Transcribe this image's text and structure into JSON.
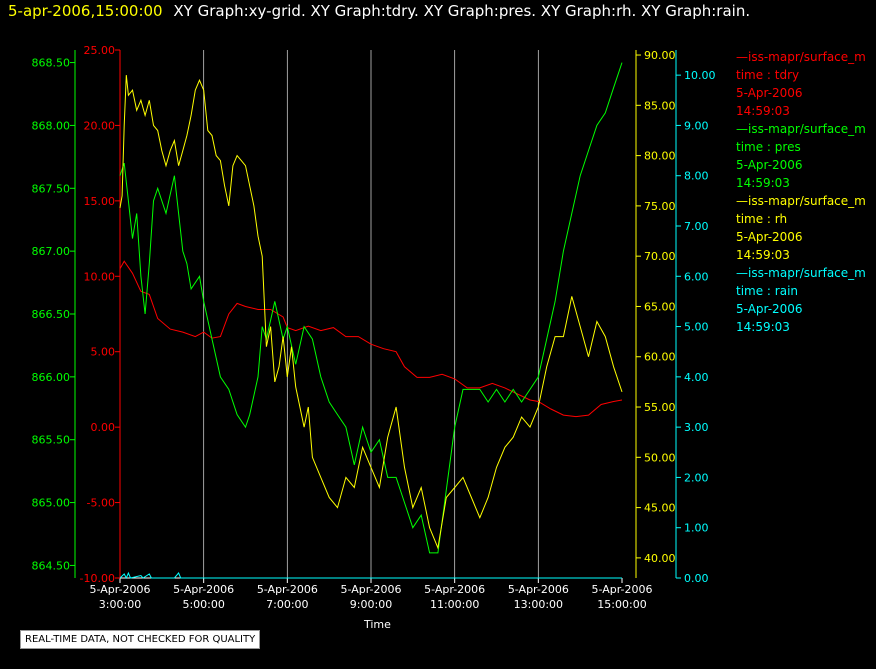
{
  "header": {
    "timestamp": "5-apr-2006,15:00:00",
    "graph_titles": "XY Graph:xy-grid.  XY Graph:tdry.  XY Graph:pres.  XY Graph:rh.  XY Graph:rain."
  },
  "footer_note": "REAL-TIME DATA, NOT CHECKED FOR QUALITY",
  "colors": {
    "tdry": "#ff0000",
    "pres": "#00ff00",
    "rh": "#ffff00",
    "rain": "#00ffff",
    "grid": "#c8c8c8"
  },
  "legend": [
    {
      "header": "—iss-mapr/surface_m",
      "label": "time : tdry",
      "date": "5-Apr-2006",
      "time": "14:59:03",
      "color": "#ff0000"
    },
    {
      "header": "—iss-mapr/surface_m",
      "label": "time : pres",
      "date": "5-Apr-2006",
      "time": "14:59:03",
      "color": "#00ff00"
    },
    {
      "header": "—iss-mapr/surface_m",
      "label": "time : rh",
      "date": "5-Apr-2006",
      "time": "14:59:03",
      "color": "#ffff00"
    },
    {
      "header": "—iss-mapr/surface_m",
      "label": "time : rain",
      "date": "5-Apr-2006",
      "time": "14:59:03",
      "color": "#00ffff"
    }
  ],
  "chart_data": {
    "type": "line",
    "xlabel": "Time",
    "x_range_hours": [
      3,
      15
    ],
    "x_ticks": [
      {
        "date": "5-Apr-2006",
        "time": "3:00:00",
        "hour": 3
      },
      {
        "date": "5-Apr-2006",
        "time": "5:00:00",
        "hour": 5
      },
      {
        "date": "5-Apr-2006",
        "time": "7:00:00",
        "hour": 7
      },
      {
        "date": "5-Apr-2006",
        "time": "9:00:00",
        "hour": 9
      },
      {
        "date": "5-Apr-2006",
        "time": "11:00:00",
        "hour": 11
      },
      {
        "date": "5-Apr-2006",
        "time": "13:00:00",
        "hour": 13
      },
      {
        "date": "5-Apr-2006",
        "time": "15:00:00",
        "hour": 15
      }
    ],
    "grid": "vertical lines at time ticks",
    "axes": {
      "tdry": {
        "range": [
          -10,
          25
        ],
        "ticks": [
          "25.00",
          "20.00",
          "15.00",
          "10.00",
          "5.00",
          "0.00",
          "-5.00",
          "-10.00"
        ],
        "color": "#ff0000"
      },
      "pres": {
        "range": [
          864.4,
          868.6
        ],
        "ticks": [
          "868.50",
          "868.00",
          "867.50",
          "867.00",
          "866.50",
          "866.00",
          "865.50",
          "865.00",
          "864.50"
        ],
        "color": "#00ff00"
      },
      "rh": {
        "range": [
          38,
          90.5
        ],
        "ticks": [
          "90.00",
          "85.00",
          "80.00",
          "75.00",
          "70.00",
          "65.00",
          "60.00",
          "55.00",
          "50.00",
          "45.00",
          "40.00"
        ],
        "color": "#ffff00"
      },
      "rain": {
        "range": [
          0,
          10.5
        ],
        "ticks": [
          "10.00",
          "9.00",
          "8.00",
          "7.00",
          "6.00",
          "5.00",
          "4.00",
          "3.00",
          "2.00",
          "1.00",
          "0.00"
        ],
        "color": "#00ffff"
      }
    },
    "series": [
      {
        "name": "tdry",
        "axis": "tdry",
        "points": [
          [
            3.0,
            10.5
          ],
          [
            3.1,
            11.0
          ],
          [
            3.3,
            10.2
          ],
          [
            3.5,
            9.0
          ],
          [
            3.7,
            8.8
          ],
          [
            3.9,
            7.2
          ],
          [
            4.2,
            6.5
          ],
          [
            4.5,
            6.3
          ],
          [
            4.8,
            6.0
          ],
          [
            5.0,
            6.3
          ],
          [
            5.2,
            5.9
          ],
          [
            5.4,
            6.0
          ],
          [
            5.6,
            7.5
          ],
          [
            5.8,
            8.2
          ],
          [
            6.0,
            8.0
          ],
          [
            6.3,
            7.8
          ],
          [
            6.6,
            7.8
          ],
          [
            6.9,
            7.3
          ],
          [
            7.0,
            6.6
          ],
          [
            7.2,
            6.4
          ],
          [
            7.5,
            6.7
          ],
          [
            7.8,
            6.4
          ],
          [
            8.1,
            6.6
          ],
          [
            8.4,
            6.0
          ],
          [
            8.7,
            6.0
          ],
          [
            9.0,
            5.5
          ],
          [
            9.3,
            5.2
          ],
          [
            9.6,
            5.0
          ],
          [
            9.8,
            4.0
          ],
          [
            10.1,
            3.3
          ],
          [
            10.4,
            3.3
          ],
          [
            10.7,
            3.5
          ],
          [
            11.0,
            3.2
          ],
          [
            11.3,
            2.6
          ],
          [
            11.6,
            2.6
          ],
          [
            11.9,
            2.9
          ],
          [
            12.2,
            2.6
          ],
          [
            12.5,
            2.2
          ],
          [
            12.8,
            1.8
          ],
          [
            13.0,
            1.7
          ],
          [
            13.3,
            1.2
          ],
          [
            13.6,
            0.8
          ],
          [
            13.9,
            0.7
          ],
          [
            14.2,
            0.8
          ],
          [
            14.5,
            1.5
          ],
          [
            14.8,
            1.7
          ],
          [
            15.0,
            1.8
          ]
        ]
      },
      {
        "name": "pres",
        "axis": "pres",
        "points": [
          [
            3.0,
            867.6
          ],
          [
            3.1,
            867.7
          ],
          [
            3.2,
            867.4
          ],
          [
            3.3,
            867.1
          ],
          [
            3.4,
            867.3
          ],
          [
            3.5,
            866.8
          ],
          [
            3.6,
            866.5
          ],
          [
            3.7,
            866.9
          ],
          [
            3.8,
            867.4
          ],
          [
            3.9,
            867.5
          ],
          [
            4.1,
            867.3
          ],
          [
            4.3,
            867.6
          ],
          [
            4.5,
            867.0
          ],
          [
            4.6,
            866.9
          ],
          [
            4.7,
            866.7
          ],
          [
            4.9,
            866.8
          ],
          [
            5.0,
            866.6
          ],
          [
            5.2,
            866.3
          ],
          [
            5.4,
            866.0
          ],
          [
            5.6,
            865.9
          ],
          [
            5.8,
            865.7
          ],
          [
            6.0,
            865.6
          ],
          [
            6.1,
            865.7
          ],
          [
            6.3,
            866.0
          ],
          [
            6.4,
            866.4
          ],
          [
            6.5,
            866.3
          ],
          [
            6.7,
            866.6
          ],
          [
            6.9,
            866.3
          ],
          [
            7.0,
            866.4
          ],
          [
            7.2,
            866.1
          ],
          [
            7.4,
            866.4
          ],
          [
            7.6,
            866.3
          ],
          [
            7.8,
            866.0
          ],
          [
            8.0,
            865.8
          ],
          [
            8.2,
            865.7
          ],
          [
            8.4,
            865.6
          ],
          [
            8.6,
            865.3
          ],
          [
            8.8,
            865.6
          ],
          [
            9.0,
            865.4
          ],
          [
            9.2,
            865.5
          ],
          [
            9.4,
            865.2
          ],
          [
            9.6,
            865.2
          ],
          [
            9.8,
            865.0
          ],
          [
            10.0,
            864.8
          ],
          [
            10.2,
            864.9
          ],
          [
            10.4,
            864.6
          ],
          [
            10.6,
            864.6
          ],
          [
            10.8,
            865.1
          ],
          [
            11.0,
            865.6
          ],
          [
            11.2,
            865.9
          ],
          [
            11.4,
            865.9
          ],
          [
            11.6,
            865.9
          ],
          [
            11.8,
            865.8
          ],
          [
            12.0,
            865.9
          ],
          [
            12.2,
            865.8
          ],
          [
            12.4,
            865.9
          ],
          [
            12.6,
            865.8
          ],
          [
            12.8,
            865.9
          ],
          [
            13.0,
            866.0
          ],
          [
            13.2,
            866.3
          ],
          [
            13.4,
            866.6
          ],
          [
            13.6,
            867.0
          ],
          [
            13.8,
            867.3
          ],
          [
            14.0,
            867.6
          ],
          [
            14.2,
            867.8
          ],
          [
            14.4,
            868.0
          ],
          [
            14.6,
            868.1
          ],
          [
            14.8,
            868.3
          ],
          [
            15.0,
            868.5
          ]
        ]
      },
      {
        "name": "rh",
        "axis": "rh",
        "points": [
          [
            3.0,
            74.8
          ],
          [
            3.05,
            76.0
          ],
          [
            3.1,
            83.0
          ],
          [
            3.15,
            88.0
          ],
          [
            3.2,
            86.0
          ],
          [
            3.3,
            86.5
          ],
          [
            3.4,
            84.5
          ],
          [
            3.5,
            85.5
          ],
          [
            3.6,
            84.0
          ],
          [
            3.7,
            85.5
          ],
          [
            3.8,
            83.0
          ],
          [
            3.9,
            82.5
          ],
          [
            4.0,
            80.5
          ],
          [
            4.1,
            79.0
          ],
          [
            4.2,
            80.5
          ],
          [
            4.3,
            81.5
          ],
          [
            4.4,
            79.0
          ],
          [
            4.5,
            80.5
          ],
          [
            4.6,
            82.0
          ],
          [
            4.7,
            84.0
          ],
          [
            4.8,
            86.5
          ],
          [
            4.9,
            87.5
          ],
          [
            5.0,
            86.5
          ],
          [
            5.1,
            82.5
          ],
          [
            5.2,
            82.0
          ],
          [
            5.3,
            80.0
          ],
          [
            5.4,
            79.5
          ],
          [
            5.5,
            77.0
          ],
          [
            5.6,
            75.0
          ],
          [
            5.7,
            79.0
          ],
          [
            5.8,
            80.0
          ],
          [
            5.9,
            79.5
          ],
          [
            6.0,
            79.0
          ],
          [
            6.1,
            77.0
          ],
          [
            6.2,
            75.0
          ],
          [
            6.3,
            72.0
          ],
          [
            6.4,
            70.0
          ],
          [
            6.5,
            61.0
          ],
          [
            6.6,
            63.0
          ],
          [
            6.7,
            57.5
          ],
          [
            6.8,
            59.0
          ],
          [
            6.9,
            62.0
          ],
          [
            7.0,
            58.0
          ],
          [
            7.1,
            61.0
          ],
          [
            7.2,
            57.0
          ],
          [
            7.3,
            55.0
          ],
          [
            7.4,
            53.0
          ],
          [
            7.5,
            55.0
          ],
          [
            7.6,
            50.0
          ],
          [
            7.8,
            48.0
          ],
          [
            8.0,
            46.0
          ],
          [
            8.2,
            45.0
          ],
          [
            8.4,
            48.0
          ],
          [
            8.6,
            47.0
          ],
          [
            8.8,
            51.0
          ],
          [
            9.0,
            49.0
          ],
          [
            9.2,
            47.0
          ],
          [
            9.4,
            52.0
          ],
          [
            9.6,
            55.0
          ],
          [
            9.8,
            49.0
          ],
          [
            10.0,
            45.0
          ],
          [
            10.2,
            47.0
          ],
          [
            10.4,
            43.0
          ],
          [
            10.6,
            41.0
          ],
          [
            10.8,
            46.0
          ],
          [
            11.0,
            47.0
          ],
          [
            11.2,
            48.0
          ],
          [
            11.4,
            46.0
          ],
          [
            11.6,
            44.0
          ],
          [
            11.8,
            46.0
          ],
          [
            12.0,
            49.0
          ],
          [
            12.2,
            51.0
          ],
          [
            12.4,
            52.0
          ],
          [
            12.6,
            54.0
          ],
          [
            12.8,
            53.0
          ],
          [
            13.0,
            55.0
          ],
          [
            13.2,
            59.0
          ],
          [
            13.4,
            62.0
          ],
          [
            13.6,
            62.0
          ],
          [
            13.8,
            66.0
          ],
          [
            14.0,
            63.0
          ],
          [
            14.2,
            60.0
          ],
          [
            14.4,
            63.5
          ],
          [
            14.6,
            62.0
          ],
          [
            14.8,
            59.0
          ],
          [
            15.0,
            56.5
          ]
        ]
      },
      {
        "name": "rain",
        "axis": "rain",
        "points": [
          [
            3.0,
            0.0
          ],
          [
            3.1,
            0.08
          ],
          [
            3.15,
            0.0
          ],
          [
            3.2,
            0.1
          ],
          [
            3.25,
            0.0
          ],
          [
            3.5,
            0.05
          ],
          [
            3.55,
            0.0
          ],
          [
            3.7,
            0.08
          ],
          [
            3.75,
            0.0
          ],
          [
            4.3,
            0.0
          ],
          [
            4.4,
            0.1
          ],
          [
            4.45,
            0.0
          ],
          [
            15.0,
            0.0
          ]
        ]
      }
    ]
  }
}
